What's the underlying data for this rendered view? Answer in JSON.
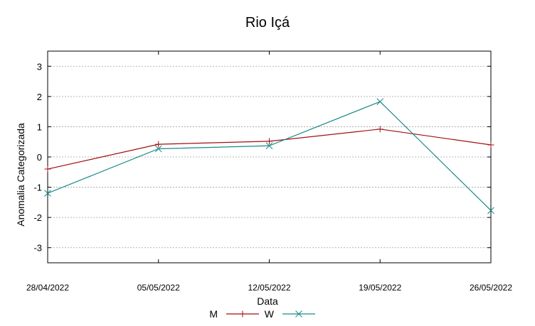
{
  "chart_data": {
    "type": "line",
    "title": "Rio Içá",
    "xlabel": "Data",
    "ylabel": "Anomalia Categorizada",
    "categories": [
      "28/04/2022",
      "05/05/2022",
      "12/05/2022",
      "19/05/2022",
      "26/05/2022"
    ],
    "ylim": [
      -3.5,
      3.5
    ],
    "yticks": [
      3,
      2,
      1,
      0,
      -1,
      -2,
      -3
    ],
    "ytick_labels": [
      "3",
      "2",
      "1",
      "0",
      "-1",
      "-2",
      "-3"
    ],
    "grid": true,
    "legend_position": "bottom",
    "series": [
      {
        "name": "M",
        "color": "#a01010",
        "marker": "plus",
        "values": [
          -0.4,
          0.42,
          0.52,
          0.92,
          0.4
        ]
      },
      {
        "name": "W",
        "color": "#1a8a8a",
        "marker": "cross",
        "values": [
          -1.2,
          0.27,
          0.37,
          1.83,
          -1.77
        ]
      }
    ]
  }
}
